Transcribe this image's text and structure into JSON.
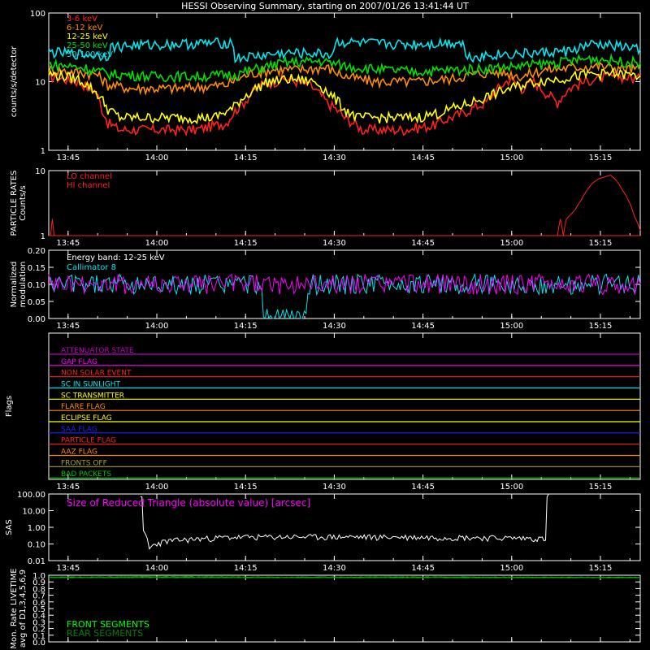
{
  "title": "HESSI Observing Summary, starting on 2007/01/26 13:41:44 UT",
  "time_ticks": [
    "13:45",
    "14:00",
    "14:15",
    "14:30",
    "14:45",
    "15:00",
    "15:15"
  ],
  "time_tick_minutes": [
    3.27,
    18.27,
    33.27,
    48.27,
    63.27,
    78.27,
    93.27
  ],
  "time_range_minutes": [
    0,
    100
  ],
  "colors": {
    "axes": "#ffffff",
    "background": "#000000"
  },
  "chart_data": [
    {
      "type": "line",
      "panel": "count-rates",
      "ylabel": "counts/s/detector",
      "yscale": "log",
      "ylim": [
        1,
        100
      ],
      "ytick_labels": [
        "1",
        "10",
        "100"
      ],
      "series": [
        {
          "name": "3-6 keV",
          "color": "#ff2020",
          "values": [
            [
              0,
              12
            ],
            [
              5,
              10
            ],
            [
              8,
              7
            ],
            [
              9,
              4
            ],
            [
              10,
              2.5
            ],
            [
              12,
              2
            ],
            [
              20,
              2
            ],
            [
              25,
              2
            ],
            [
              30,
              2.5
            ],
            [
              33,
              5
            ],
            [
              36,
              9
            ],
            [
              40,
              11
            ],
            [
              44,
              9
            ],
            [
              47,
              5
            ],
            [
              50,
              3
            ],
            [
              53,
              2
            ],
            [
              60,
              2
            ],
            [
              65,
              2.3
            ],
            [
              70,
              3.5
            ],
            [
              74,
              5
            ],
            [
              76,
              8
            ],
            [
              78,
              11
            ],
            [
              80,
              8
            ],
            [
              82,
              10
            ],
            [
              84,
              7
            ],
            [
              86,
              5
            ],
            [
              88,
              8
            ],
            [
              92,
              11
            ],
            [
              96,
              12
            ],
            [
              100,
              11
            ]
          ]
        },
        {
          "name": "6-12 keV",
          "color": "#ff8c00",
          "values": [
            [
              0,
              15
            ],
            [
              8,
              13
            ],
            [
              10,
              9
            ],
            [
              14,
              8
            ],
            [
              22,
              8
            ],
            [
              30,
              9
            ],
            [
              34,
              13
            ],
            [
              38,
              15
            ],
            [
              42,
              15
            ],
            [
              47,
              16
            ],
            [
              50,
              12
            ],
            [
              55,
              10
            ],
            [
              62,
              10
            ],
            [
              68,
              11
            ],
            [
              72,
              13
            ],
            [
              76,
              14
            ],
            [
              80,
              12
            ],
            [
              84,
              15
            ],
            [
              88,
              16
            ],
            [
              92,
              17
            ],
            [
              96,
              16
            ],
            [
              100,
              15
            ]
          ]
        },
        {
          "name": "12-25 keV",
          "color": "#ffff00",
          "values": [
            [
              0,
              13
            ],
            [
              5,
              11
            ],
            [
              8,
              7
            ],
            [
              10,
              4
            ],
            [
              12,
              3
            ],
            [
              20,
              3
            ],
            [
              28,
              3
            ],
            [
              31,
              4
            ],
            [
              34,
              7
            ],
            [
              37,
              10
            ],
            [
              41,
              11
            ],
            [
              45,
              10
            ],
            [
              48,
              6
            ],
            [
              50,
              4
            ],
            [
              52,
              3
            ],
            [
              62,
              3
            ],
            [
              66,
              3.5
            ],
            [
              70,
              4.5
            ],
            [
              74,
              6
            ],
            [
              78,
              8
            ],
            [
              82,
              10
            ],
            [
              86,
              11
            ],
            [
              92,
              13
            ],
            [
              96,
              13
            ],
            [
              100,
              12
            ]
          ]
        },
        {
          "name": "25-50 keV",
          "color": "#00e000",
          "values": [
            [
              0,
              18
            ],
            [
              6,
              16
            ],
            [
              10,
              13
            ],
            [
              18,
              12
            ],
            [
              26,
              12
            ],
            [
              32,
              13
            ],
            [
              36,
              16
            ],
            [
              40,
              19
            ],
            [
              46,
              20
            ],
            [
              50,
              17
            ],
            [
              56,
              15
            ],
            [
              62,
              14
            ],
            [
              70,
              15
            ],
            [
              76,
              16
            ],
            [
              80,
              17
            ],
            [
              86,
              19
            ],
            [
              92,
              22
            ],
            [
              96,
              20
            ],
            [
              100,
              19
            ]
          ]
        },
        {
          "name": "50-100 keV",
          "color": "#00e5ee",
          "values": [
            [
              0,
              27
            ],
            [
              6,
              25
            ],
            [
              10,
              24
            ],
            [
              10.5,
              32
            ],
            [
              15,
              34
            ],
            [
              20,
              35
            ],
            [
              25,
              36
            ],
            [
              30,
              37
            ],
            [
              31,
              38
            ],
            [
              31.5,
              22
            ],
            [
              36,
              24
            ],
            [
              40,
              26
            ],
            [
              44,
              26
            ],
            [
              48,
              25
            ],
            [
              48.5,
              38
            ],
            [
              55,
              36
            ],
            [
              60,
              35
            ],
            [
              65,
              36
            ],
            [
              70,
              38
            ],
            [
              70.5,
              23
            ],
            [
              76,
              25
            ],
            [
              82,
              26
            ],
            [
              88,
              28
            ],
            [
              92,
              35
            ],
            [
              96,
              33
            ],
            [
              100,
              30
            ]
          ]
        }
      ]
    },
    {
      "type": "line",
      "panel": "particle-rates",
      "ylabel": "PARTICLE RATES Counts/s",
      "yscale": "log",
      "ylim": [
        1,
        10
      ],
      "ytick_labels": [
        "1",
        "10"
      ],
      "series": [
        {
          "name": "LO channel",
          "color": "#ff2020",
          "values": [
            [
              0,
              1
            ],
            [
              0.3,
              1
            ],
            [
              0.6,
              1.8
            ],
            [
              0.9,
              1
            ],
            [
              86,
              1
            ],
            [
              86.5,
              1.8
            ],
            [
              87,
              1
            ],
            [
              87.5,
              1.8
            ],
            [
              88,
              2
            ],
            [
              89,
              2.5
            ],
            [
              90,
              3.5
            ],
            [
              91,
              5
            ],
            [
              92,
              6.5
            ],
            [
              93,
              7.5
            ],
            [
              94,
              8
            ],
            [
              95,
              8.5
            ],
            [
              96,
              7
            ],
            [
              97,
              5
            ],
            [
              98,
              3.5
            ],
            [
              99,
              2
            ],
            [
              100,
              1.2
            ]
          ]
        },
        {
          "name": "HI channel",
          "color": "#ff2020",
          "values": [
            [
              0,
              1
            ],
            [
              100,
              1
            ]
          ]
        }
      ]
    },
    {
      "type": "line",
      "panel": "modulation",
      "ylabel": "Normalized modulation",
      "ylim": [
        0.0,
        0.2
      ],
      "ytick_labels": [
        "0.00",
        "0.05",
        "0.10",
        "0.15",
        "0.20"
      ],
      "annotations": [
        "Energy band: 12-25 keV"
      ],
      "series": [
        {
          "name": "Callimator 8",
          "color": "#00e5ee",
          "values": [
            [
              0,
              0.1
            ],
            [
              36,
              0.1
            ],
            [
              36.3,
              0.0
            ],
            [
              43.5,
              0.0
            ],
            [
              43.8,
              0.1
            ],
            [
              100,
              0.1
            ]
          ]
        },
        {
          "name": "",
          "color": "#ff00ff",
          "values": [
            [
              0,
              0.1
            ],
            [
              100,
              0.1
            ]
          ]
        }
      ]
    },
    {
      "type": "line",
      "panel": "flags",
      "ylabel": "Flags",
      "flags": [
        {
          "name": "ATTENUATOR STATE",
          "color": "#c000c0"
        },
        {
          "name": "GAP FLAG",
          "color": "#ff00ff"
        },
        {
          "name": "NON SOLAR EVENT",
          "color": "#ff2020"
        },
        {
          "name": "SC IN SUNLIGHT",
          "color": "#00e5ee"
        },
        {
          "name": "SC TRANSMITTER",
          "color": "#ffff00"
        },
        {
          "name": "FLARE FLAG",
          "color": "#ff8c00"
        },
        {
          "name": "ECLIPSE FLAG",
          "color": "#ffff00"
        },
        {
          "name": "SAA FLAG",
          "color": "#2020ff"
        },
        {
          "name": "PARTICLE FLAG",
          "color": "#ff2020"
        },
        {
          "name": "AAZ FLAG",
          "color": "#ff8c00"
        },
        {
          "name": "FRONTS OFF",
          "color": "#a0a020"
        },
        {
          "name": "BAD PACKETS",
          "color": "#00c000"
        }
      ]
    },
    {
      "type": "line",
      "panel": "sas",
      "ylabel": "SAS",
      "yscale": "log",
      "ylim": [
        0.01,
        100
      ],
      "ytick_labels": [
        "0.01",
        "0.10",
        "1.00",
        "10.00",
        "100.00"
      ],
      "annotations": [
        "Size of Reduced Triangle (absolute value) [arcsec]"
      ],
      "series": [
        {
          "name": "",
          "color": "#ffffff",
          "values": [
            [
              15.5,
              100
            ],
            [
              16,
              0.5
            ],
            [
              17,
              0.05
            ],
            [
              18,
              0.1
            ],
            [
              20,
              0.15
            ],
            [
              25,
              0.2
            ],
            [
              30,
              0.25
            ],
            [
              40,
              0.27
            ],
            [
              50,
              0.27
            ],
            [
              60,
              0.26
            ],
            [
              70,
              0.25
            ],
            [
              82,
              0.22
            ],
            [
              84,
              0.2
            ],
            [
              84.5,
              100
            ]
          ]
        }
      ]
    },
    {
      "type": "line",
      "panel": "livetime",
      "ylabel": "Mon. Rate LIVETIME avg of D1,3,4,5,6,9",
      "ylim": [
        0.0,
        1.0
      ],
      "ytick_labels": [
        "0.0",
        "0.1",
        "0.2",
        "0.3",
        "0.4",
        "0.5",
        "0.6",
        "0.7",
        "0.8",
        "0.9",
        "1.0"
      ],
      "series": [
        {
          "name": "FRONT SEGMENTS",
          "color": "#00ff00",
          "values": [
            [
              0,
              0.97
            ],
            [
              20,
              0.975
            ],
            [
              40,
              0.97
            ],
            [
              60,
              0.972
            ],
            [
              80,
              0.97
            ],
            [
              100,
              0.968
            ]
          ]
        },
        {
          "name": "REAR SEGMENTS",
          "color": "#008000",
          "values": [
            [
              0,
              0.965
            ],
            [
              50,
              0.965
            ],
            [
              100,
              0.963
            ]
          ]
        }
      ]
    }
  ]
}
